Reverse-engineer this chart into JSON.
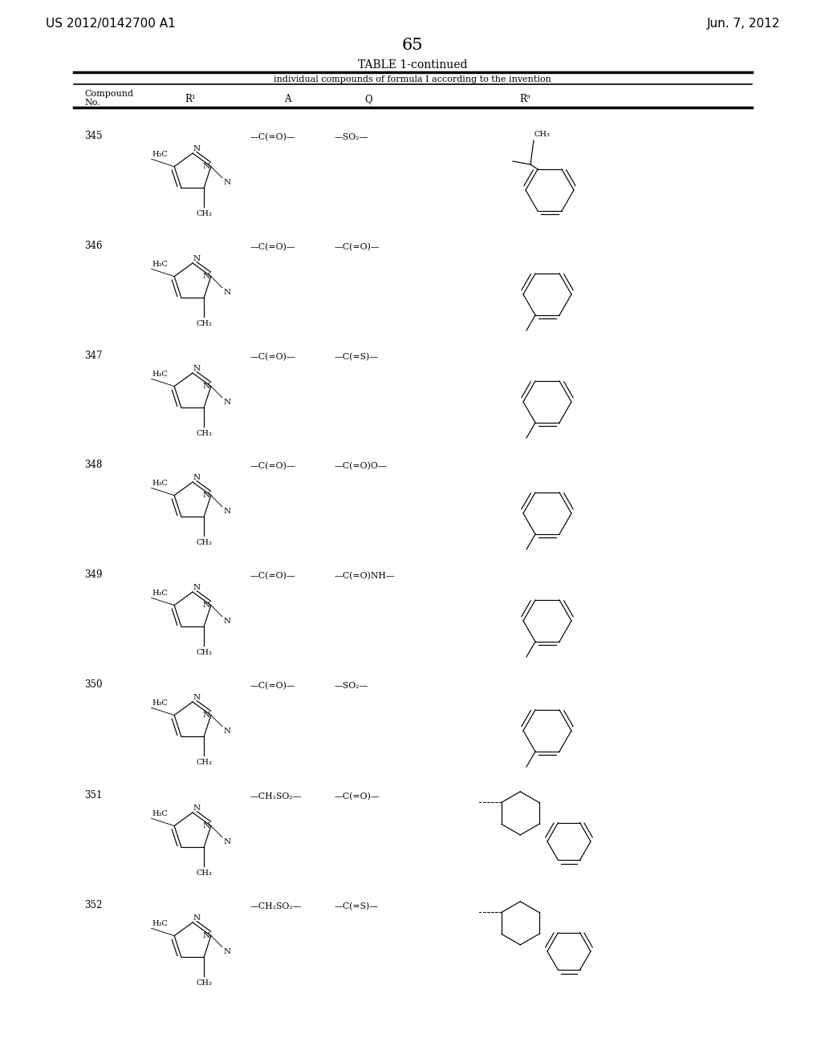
{
  "page_header_left": "US 2012/0142700 A1",
  "page_header_right": "Jun. 7, 2012",
  "page_number": "65",
  "table_title": "TABLE 1-continued",
  "table_subtitle": "individual compounds of formula I according to the invention",
  "col_headers": [
    "Compound\nNo.",
    "R¹",
    "A",
    "Q",
    "R⁹"
  ],
  "compounds": [
    {
      "no": "345",
      "A": "—C(=O)—",
      "Q": "—SO₂—",
      "r9_type": "cumyl"
    },
    {
      "no": "346",
      "A": "—C(=O)—",
      "Q": "—C(=O)—",
      "r9_type": "tol_bot"
    },
    {
      "no": "347",
      "A": "—C(=O)—",
      "Q": "—C(=S)—",
      "r9_type": "tol_ll"
    },
    {
      "no": "348",
      "A": "—C(=O)—",
      "Q": "—C(=O)O—",
      "r9_type": "tol_bot"
    },
    {
      "no": "349",
      "A": "—C(=O)—",
      "Q": "—C(=O)NH—",
      "r9_type": "tol_ll"
    },
    {
      "no": "350",
      "A": "—C(=O)—",
      "Q": "—SO₂—",
      "r9_type": "tol_ll"
    },
    {
      "no": "351",
      "A": "—CH₂SO₂—",
      "Q": "—C(=O)—",
      "r9_type": "tetralin"
    },
    {
      "no": "352",
      "A": "—CH₂SO₂—",
      "Q": "—C(=S)—",
      "r9_type": "tetralin"
    }
  ],
  "row_tops": [
    1162,
    1025,
    888,
    752,
    615,
    478,
    340,
    203
  ],
  "TL": 90,
  "TR": 935
}
